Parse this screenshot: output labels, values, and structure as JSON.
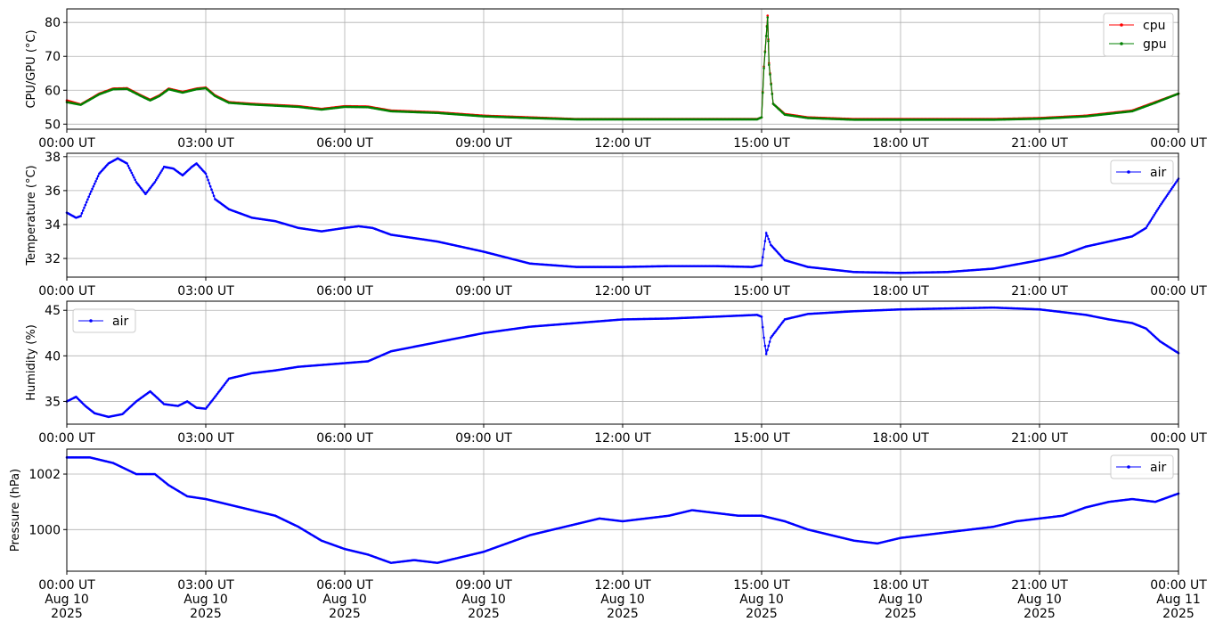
{
  "chart_data": [
    {
      "type": "line",
      "ylabel": "CPU/GPU (°C)",
      "ylim": [
        48.5,
        84
      ],
      "yticks": [
        50,
        60,
        70,
        80
      ],
      "grid": true,
      "legend_position": "top-right",
      "x_ticks": [
        "00:00 UT",
        "03:00 UT",
        "06:00 UT",
        "09:00 UT",
        "12:00 UT",
        "15:00 UT",
        "18:00 UT",
        "21:00 UT",
        "00:00 UT"
      ],
      "series": [
        {
          "name": "cpu",
          "color": "#ff0000",
          "x": [
            0,
            0.3,
            0.7,
            1.0,
            1.3,
            1.6,
            1.8,
            2.0,
            2.2,
            2.5,
            2.8,
            3.0,
            3.2,
            3.5,
            4.0,
            5.0,
            5.5,
            6.0,
            6.5,
            7.0,
            8.0,
            9.0,
            10.0,
            11.0,
            12.0,
            13.0,
            14.0,
            14.9,
            15.0,
            15.05,
            15.1,
            15.13,
            15.16,
            15.25,
            15.5,
            16.0,
            17.0,
            18.0,
            19.0,
            20.0,
            21.0,
            22.0,
            23.0,
            23.5,
            24.0
          ],
          "y": [
            57,
            55.8,
            59,
            60.5,
            60.6,
            58.5,
            57.2,
            58.5,
            60.5,
            59.5,
            60.5,
            60.8,
            58.5,
            56.5,
            56,
            55.3,
            54.5,
            55.3,
            55.2,
            54,
            53.5,
            52.5,
            52,
            51.5,
            51.5,
            51.5,
            51.5,
            51.5,
            52,
            67,
            76,
            82,
            68,
            56,
            53,
            52,
            51.5,
            51.5,
            51.5,
            51.5,
            51.8,
            52.5,
            54,
            56.5,
            59
          ]
        },
        {
          "name": "gpu",
          "color": "#008000",
          "x": [
            0,
            0.3,
            0.7,
            1.0,
            1.3,
            1.6,
            1.8,
            2.0,
            2.2,
            2.5,
            2.8,
            3.0,
            3.2,
            3.5,
            4.0,
            5.0,
            5.5,
            6.0,
            6.5,
            7.0,
            8.0,
            9.0,
            10.0,
            11.0,
            12.0,
            13.0,
            14.0,
            14.9,
            15.0,
            15.05,
            15.1,
            15.13,
            15.16,
            15.25,
            15.5,
            16.0,
            17.0,
            18.0,
            19.0,
            20.0,
            21.0,
            22.0,
            23.0,
            23.5,
            24.0
          ],
          "y": [
            56.5,
            55.7,
            58.8,
            60.3,
            60.4,
            58.3,
            57,
            58.3,
            60.3,
            59.3,
            60.3,
            60.6,
            58.3,
            56.3,
            55.8,
            55.1,
            54.3,
            55.1,
            55,
            53.8,
            53.3,
            52.3,
            51.8,
            51.4,
            51.4,
            51.4,
            51.4,
            51.4,
            52,
            66.5,
            76,
            81.5,
            67.5,
            56,
            52.8,
            51.8,
            51.3,
            51.3,
            51.3,
            51.3,
            51.6,
            52.3,
            53.8,
            56.3,
            59
          ]
        }
      ]
    },
    {
      "type": "line",
      "ylabel": "Temperature (°C)",
      "ylim": [
        30.9,
        38.2
      ],
      "yticks": [
        32,
        34,
        36,
        38
      ],
      "grid": true,
      "legend_position": "top-right",
      "x_ticks": [
        "00:00 UT",
        "03:00 UT",
        "06:00 UT",
        "09:00 UT",
        "12:00 UT",
        "15:00 UT",
        "18:00 UT",
        "21:00 UT",
        "00:00 UT"
      ],
      "series": [
        {
          "name": "air",
          "color": "#0000ff",
          "x": [
            0,
            0.2,
            0.3,
            0.5,
            0.7,
            0.9,
            1.1,
            1.3,
            1.5,
            1.7,
            1.9,
            2.1,
            2.3,
            2.5,
            2.7,
            2.8,
            3.0,
            3.2,
            3.5,
            4.0,
            4.5,
            5.0,
            5.5,
            6.0,
            6.3,
            6.6,
            7.0,
            8.0,
            9.0,
            10.0,
            11.0,
            12.0,
            13.0,
            14.0,
            14.8,
            15.0,
            15.1,
            15.2,
            15.5,
            16.0,
            17.0,
            18.0,
            19.0,
            20.0,
            21.0,
            21.5,
            22.0,
            22.5,
            23.0,
            23.3,
            23.6,
            24.0
          ],
          "y": [
            34.7,
            34.4,
            34.5,
            35.8,
            37.0,
            37.6,
            37.9,
            37.6,
            36.5,
            35.8,
            36.5,
            37.4,
            37.3,
            36.9,
            37.4,
            37.6,
            37.0,
            35.5,
            34.9,
            34.4,
            34.2,
            33.8,
            33.6,
            33.8,
            33.9,
            33.8,
            33.4,
            33.0,
            32.4,
            31.7,
            31.5,
            31.5,
            31.55,
            31.55,
            31.5,
            31.6,
            33.5,
            32.8,
            31.9,
            31.5,
            31.2,
            31.15,
            31.2,
            31.4,
            31.9,
            32.2,
            32.7,
            33.0,
            33.3,
            33.8,
            35.1,
            36.7
          ]
        }
      ]
    },
    {
      "type": "line",
      "ylabel": "Humidity (%)",
      "ylim": [
        32.5,
        46
      ],
      "yticks": [
        35,
        40,
        45
      ],
      "grid": true,
      "legend_position": "top-left",
      "x_ticks": [
        "00:00 UT",
        "03:00 UT",
        "06:00 UT",
        "09:00 UT",
        "12:00 UT",
        "15:00 UT",
        "18:00 UT",
        "21:00 UT",
        "00:00 UT"
      ],
      "series": [
        {
          "name": "air",
          "color": "#0000ff",
          "x": [
            0,
            0.2,
            0.4,
            0.6,
            0.9,
            1.2,
            1.5,
            1.8,
            2.1,
            2.4,
            2.6,
            2.8,
            3.0,
            3.2,
            3.5,
            4.0,
            4.5,
            5.0,
            5.5,
            6.0,
            6.5,
            7.0,
            8.0,
            9.0,
            10.0,
            11.0,
            12.0,
            13.0,
            14.0,
            14.9,
            15.0,
            15.05,
            15.1,
            15.2,
            15.5,
            16.0,
            17.0,
            18.0,
            19.0,
            20.0,
            21.0,
            21.5,
            22.0,
            22.5,
            23.0,
            23.3,
            23.6,
            24.0
          ],
          "y": [
            35.0,
            35.5,
            34.5,
            33.7,
            33.3,
            33.6,
            35.0,
            36.1,
            34.7,
            34.5,
            35.0,
            34.3,
            34.2,
            35.5,
            37.5,
            38.1,
            38.4,
            38.8,
            39.0,
            39.2,
            39.4,
            40.5,
            41.5,
            42.5,
            43.2,
            43.6,
            44.0,
            44.1,
            44.3,
            44.5,
            44.3,
            42.0,
            40.2,
            42.0,
            44.0,
            44.6,
            44.9,
            45.1,
            45.2,
            45.3,
            45.1,
            44.8,
            44.5,
            44.0,
            43.6,
            43.0,
            41.6,
            40.3
          ]
        }
      ]
    },
    {
      "type": "line",
      "ylabel": "Pressure (hPa)",
      "ylim": [
        998.5,
        1002.9
      ],
      "yticks": [
        1000,
        1002
      ],
      "grid": true,
      "legend_position": "top-right",
      "x_ticks": [
        "00:00 UT\nAug 10\n2025",
        "03:00 UT\nAug 10\n2025",
        "06:00 UT\nAug 10\n2025",
        "09:00 UT\nAug 10\n2025",
        "12:00 UT\nAug 10\n2025",
        "15:00 UT\nAug 10\n2025",
        "18:00 UT\nAug 10\n2025",
        "21:00 UT\nAug 10\n2025",
        "00:00 UT\nAug 11\n2025"
      ],
      "series": [
        {
          "name": "air",
          "color": "#0000ff",
          "x": [
            0,
            0.5,
            1.0,
            1.5,
            1.9,
            2.2,
            2.6,
            3.0,
            3.5,
            4.0,
            4.5,
            5.0,
            5.5,
            6.0,
            6.5,
            7.0,
            7.5,
            8.0,
            8.5,
            9.0,
            9.5,
            10.0,
            10.5,
            11.0,
            11.5,
            12.0,
            12.5,
            13.0,
            13.5,
            14.0,
            14.5,
            15.0,
            15.5,
            16.0,
            16.5,
            17.0,
            17.5,
            18.0,
            18.5,
            19.0,
            19.5,
            20.0,
            20.5,
            21.0,
            21.5,
            22.0,
            22.5,
            23.0,
            23.5,
            24.0
          ],
          "y": [
            1002.6,
            1002.6,
            1002.4,
            1002.0,
            1002.0,
            1001.6,
            1001.2,
            1001.1,
            1000.9,
            1000.7,
            1000.5,
            1000.1,
            999.6,
            999.3,
            999.1,
            998.8,
            998.9,
            998.8,
            999.0,
            999.2,
            999.5,
            999.8,
            1000.0,
            1000.2,
            1000.4,
            1000.3,
            1000.4,
            1000.5,
            1000.7,
            1000.6,
            1000.5,
            1000.5,
            1000.3,
            1000.0,
            999.8,
            999.6,
            999.5,
            999.7,
            999.8,
            999.9,
            1000.0,
            1000.1,
            1000.3,
            1000.4,
            1000.5,
            1000.8,
            1001.0,
            1001.1,
            1001.0,
            1001.3
          ]
        }
      ]
    }
  ]
}
